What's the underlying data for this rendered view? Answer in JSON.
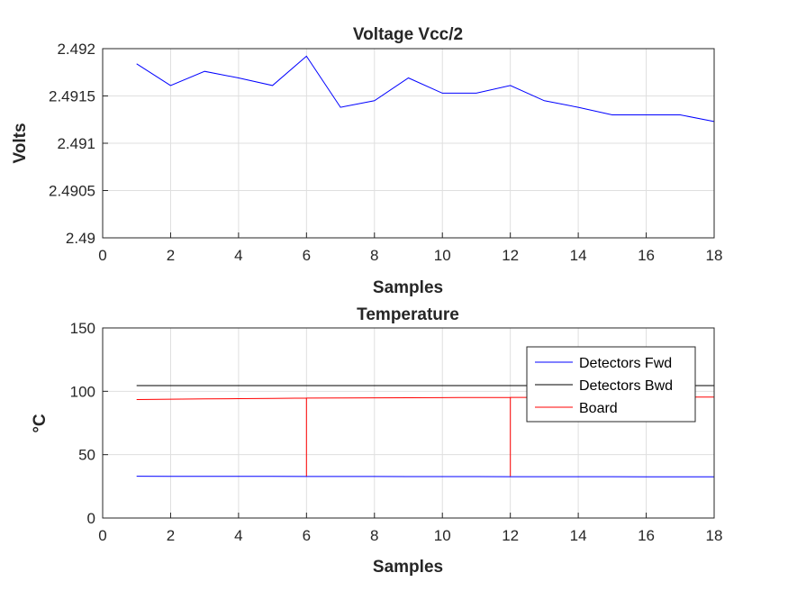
{
  "chart_data": [
    {
      "type": "line",
      "title": "Voltage Vcc/2",
      "xlabel": "Samples",
      "ylabel": "Volts",
      "xlim": [
        0,
        18
      ],
      "ylim": [
        2.49,
        2.492
      ],
      "xticks": [
        0,
        2,
        4,
        6,
        8,
        10,
        12,
        14,
        16,
        18
      ],
      "yticks": [
        2.49,
        2.4905,
        2.491,
        2.4915,
        2.492
      ],
      "ytick_labels": [
        "2.49",
        "2.4905",
        "2.491",
        "2.4915",
        "2.492"
      ],
      "grid": true,
      "legend": null,
      "series": [
        {
          "color": "#0000ff",
          "x": [
            1,
            2,
            3,
            4,
            5,
            6,
            7,
            8,
            9,
            10,
            11,
            12,
            13,
            14,
            15,
            16,
            17,
            18
          ],
          "y": [
            2.49184,
            2.49161,
            2.49176,
            2.49169,
            2.49161,
            2.49192,
            2.49138,
            2.49145,
            2.49169,
            2.49153,
            2.49153,
            2.49161,
            2.49145,
            2.49138,
            2.4913,
            2.4913,
            2.4913,
            2.49123
          ]
        }
      ]
    },
    {
      "type": "line",
      "title": "Temperature",
      "xlabel": "Samples",
      "ylabel": "°C",
      "xlim": [
        0,
        18
      ],
      "ylim": [
        0,
        150
      ],
      "xticks": [
        0,
        2,
        4,
        6,
        8,
        10,
        12,
        14,
        16,
        18
      ],
      "yticks": [
        0,
        50,
        100,
        150
      ],
      "ytick_labels": [
        "0",
        "50",
        "100",
        "150"
      ],
      "grid": true,
      "legend": "top-right",
      "series": [
        {
          "name": "Detectors Fwd",
          "color": "#0000ff",
          "x": [
            1,
            2,
            3,
            4,
            5,
            6,
            7,
            8,
            9,
            10,
            11,
            12,
            13,
            14,
            15,
            16,
            17,
            18
          ],
          "y": [
            33,
            32.9,
            32.9,
            32.9,
            32.9,
            32.8,
            32.8,
            32.8,
            32.7,
            32.7,
            32.7,
            32.6,
            32.6,
            32.6,
            32.6,
            32.5,
            32.5,
            32.5
          ]
        },
        {
          "name": "Detectors Bwd",
          "color": "#000000",
          "x": [
            1,
            2,
            3,
            4,
            5,
            6,
            7,
            8,
            9,
            10,
            11,
            12,
            13,
            14,
            15,
            16,
            17,
            18
          ],
          "y": [
            104.5,
            104.5,
            104.5,
            104.5,
            104.5,
            104.5,
            104.5,
            104.5,
            104.5,
            104.5,
            104.5,
            104.5,
            104.5,
            104.5,
            104.5,
            104.5,
            104.5,
            104.5
          ]
        },
        {
          "name": "Board",
          "color": "#ff0000",
          "x": [
            1,
            2,
            3,
            4,
            5,
            6,
            6,
            6,
            7,
            8,
            9,
            10,
            11,
            12,
            12,
            12,
            13,
            14,
            15,
            16,
            17,
            18,
            18,
            18
          ],
          "y": [
            93.5,
            93.8,
            94.0,
            94.2,
            94.4,
            94.6,
            33,
            94.6,
            94.7,
            94.8,
            94.9,
            95.0,
            95.1,
            95.2,
            33,
            95.2,
            95.2,
            95.3,
            95.3,
            95.3,
            95.4,
            95.4,
            33,
            95.4
          ]
        }
      ]
    }
  ]
}
